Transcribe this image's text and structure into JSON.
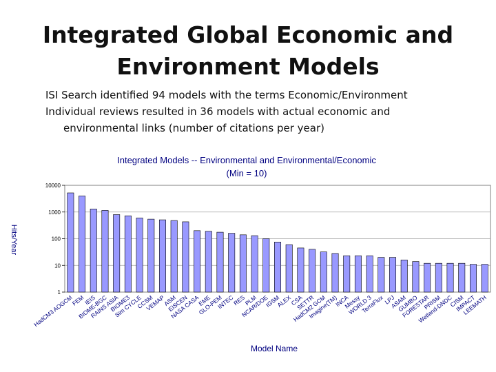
{
  "slide": {
    "title_line1": "Integrated Global Economic and",
    "title_line2": "Environment Models",
    "bullet1": "ISI Search identified 94 models with the terms Economic/Environment",
    "bullet2_line1": "Individual reviews resulted in 36 models with actual economic and",
    "bullet2_line2": "environmental links (number of citations per year)"
  },
  "chart_data": {
    "type": "bar",
    "title": "Integrated Models -- Environmental and Environmental/Economic",
    "subtitle": "(Min = 10)",
    "xlabel": "Model Name",
    "ylabel": "Hits/Year",
    "yscale": "log",
    "ylim": [
      1,
      10000
    ],
    "yticks": [
      "1",
      "10",
      "100",
      "1000",
      "10000"
    ],
    "categories": [
      "HadCM3 AOGCM",
      "FEM",
      "IEIS",
      "BIOME-BGC",
      "RAINS ASIA",
      "BIOME3",
      "Sim CYCLE",
      "CCSM",
      "VEMAP",
      "ASM",
      "EISCEN",
      "NASA CASA",
      "EME",
      "GLO-PEM",
      "INTEC",
      "RES",
      "PLM",
      "NCAR/DOE",
      "IGSM",
      "ALEX",
      "CSA",
      "SETTR",
      "HadCM2 GCM",
      "Imagine(TM)",
      "INCA",
      "Messy",
      "WORLD 3",
      "TerraFlux",
      "LPJ",
      "ASAM",
      "GUMBO",
      "FORESTAR",
      "PRISM",
      "Wetland-DNDC",
      "CISM",
      "IMPACT",
      "LEEMATH"
    ],
    "values": [
      5200,
      4000,
      1300,
      1150,
      800,
      720,
      600,
      540,
      510,
      480,
      430,
      200,
      190,
      175,
      160,
      140,
      130,
      100,
      75,
      60,
      45,
      40,
      32,
      28,
      23,
      23,
      23,
      20,
      20,
      16,
      14,
      12,
      12,
      12,
      12,
      11,
      11
    ],
    "colors": [
      "#9999ff",
      "#9999ff",
      "#9999ff",
      "#9999ff",
      "#9999ff",
      "#9999ff",
      "#9999ff",
      "#9999ff",
      "#9999ff",
      "#9999ff",
      "#9999ff",
      "#9999ff",
      "#9999ff",
      "#9999ff",
      "#9999ff",
      "#9999ff",
      "#9999ff",
      "#9999ff",
      "#9999ff",
      "#9999ff",
      "#9999ff",
      "#9999ff",
      "#9999ff",
      "#9999ff",
      "#9999ff",
      "#9999ff",
      "#9999ff",
      "#9999ff",
      "#9999ff",
      "#9999ff",
      "#9999ff",
      "#9999ff",
      "#9999ff",
      "#9999ff",
      "#9999ff",
      "#9999ff",
      "#9999ff"
    ],
    "bar_color_a": "#9999ff",
    "bar_color_b": "#9999ff",
    "text_color": "#000080",
    "grid": true
  }
}
